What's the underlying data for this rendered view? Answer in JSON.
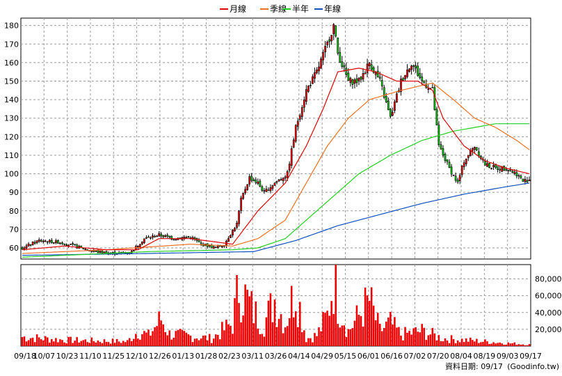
{
  "chart_data": {
    "type": "candlestick",
    "legend": [
      {
        "label": "月線",
        "color": "#e00000"
      },
      {
        "label": "季線",
        "color": "#f07020"
      },
      {
        "label": "半年",
        "color": "#20d020"
      },
      {
        "label": "年線",
        "color": "#1050c0"
      }
    ],
    "price_axis": {
      "ticks": [
        60,
        70,
        80,
        90,
        100,
        110,
        120,
        130,
        140,
        150,
        160,
        170,
        180
      ],
      "range": [
        54,
        184
      ]
    },
    "volume_axis": {
      "ticks": [
        "20,000",
        "40,000",
        "60,000",
        "80,000"
      ],
      "tick_values": [
        20000,
        40000,
        60000,
        80000
      ],
      "range": [
        0,
        97000
      ]
    },
    "x_ticks": [
      "09/18",
      "10/07",
      "10/23",
      "11/10",
      "11/25",
      "12/10",
      "12/26",
      "01/13",
      "01/28",
      "02/23",
      "03/11",
      "03/26",
      "04/14",
      "04/29",
      "05/15",
      "06/01",
      "06/16",
      "07/02",
      "07/20",
      "08/04",
      "08/19",
      "09/03",
      "09/17"
    ],
    "price_keypoints": [
      [
        0,
        60
      ],
      [
        8,
        64
      ],
      [
        18,
        63
      ],
      [
        28,
        60
      ],
      [
        35,
        58
      ],
      [
        45,
        57
      ],
      [
        52,
        58
      ],
      [
        58,
        65
      ],
      [
        65,
        67
      ],
      [
        72,
        65
      ],
      [
        80,
        66
      ],
      [
        85,
        62
      ],
      [
        92,
        60
      ],
      [
        96,
        62
      ],
      [
        102,
        73
      ],
      [
        104,
        86
      ],
      [
        108,
        98
      ],
      [
        112,
        95
      ],
      [
        115,
        90
      ],
      [
        120,
        95
      ],
      [
        126,
        100
      ],
      [
        130,
        125
      ],
      [
        135,
        145
      ],
      [
        140,
        155
      ],
      [
        145,
        170
      ],
      [
        148,
        180
      ],
      [
        150,
        165
      ],
      [
        155,
        150
      ],
      [
        160,
        150
      ],
      [
        165,
        160
      ],
      [
        170,
        150
      ],
      [
        175,
        130
      ],
      [
        180,
        150
      ],
      [
        185,
        160
      ],
      [
        190,
        150
      ],
      [
        195,
        145
      ],
      [
        198,
        115
      ],
      [
        203,
        103
      ],
      [
        207,
        95
      ],
      [
        210,
        107
      ],
      [
        215,
        115
      ],
      [
        220,
        105
      ],
      [
        225,
        103
      ],
      [
        230,
        103
      ],
      [
        235,
        100
      ],
      [
        238,
        96
      ],
      [
        241,
        97
      ]
    ],
    "ma_month": [
      [
        0,
        59
      ],
      [
        20,
        61
      ],
      [
        40,
        59
      ],
      [
        55,
        59
      ],
      [
        65,
        65
      ],
      [
        80,
        65
      ],
      [
        100,
        62
      ],
      [
        112,
        80
      ],
      [
        125,
        95
      ],
      [
        135,
        115
      ],
      [
        143,
        135
      ],
      [
        150,
        155
      ],
      [
        160,
        157
      ],
      [
        168,
        155
      ],
      [
        178,
        150
      ],
      [
        188,
        150
      ],
      [
        195,
        145
      ],
      [
        200,
        130
      ],
      [
        210,
        115
      ],
      [
        220,
        107
      ],
      [
        230,
        103
      ],
      [
        241,
        100
      ]
    ],
    "ma_quarter": [
      [
        0,
        57
      ],
      [
        40,
        59
      ],
      [
        80,
        62
      ],
      [
        100,
        61
      ],
      [
        112,
        65
      ],
      [
        125,
        75
      ],
      [
        135,
        95
      ],
      [
        145,
        115
      ],
      [
        155,
        130
      ],
      [
        165,
        140
      ],
      [
        180,
        145
      ],
      [
        195,
        149
      ],
      [
        205,
        140
      ],
      [
        215,
        130
      ],
      [
        225,
        125
      ],
      [
        235,
        118
      ],
      [
        241,
        113
      ]
    ],
    "ma_half": [
      [
        0,
        55
      ],
      [
        60,
        58
      ],
      [
        100,
        59
      ],
      [
        112,
        60
      ],
      [
        125,
        65
      ],
      [
        135,
        75
      ],
      [
        145,
        85
      ],
      [
        160,
        100
      ],
      [
        175,
        110
      ],
      [
        190,
        118
      ],
      [
        205,
        123
      ],
      [
        225,
        127
      ],
      [
        241,
        127
      ]
    ],
    "ma_year": [
      [
        0,
        56
      ],
      [
        60,
        57
      ],
      [
        110,
        58
      ],
      [
        130,
        64
      ],
      [
        150,
        72
      ],
      [
        170,
        78
      ],
      [
        190,
        84
      ],
      [
        210,
        89
      ],
      [
        230,
        93
      ],
      [
        241,
        95
      ]
    ],
    "volume_keypoints": [
      [
        0,
        12000
      ],
      [
        20,
        8000
      ],
      [
        50,
        6000
      ],
      [
        55,
        20000
      ],
      [
        60,
        14000
      ],
      [
        66,
        36000
      ],
      [
        70,
        16000
      ],
      [
        90,
        10000
      ],
      [
        100,
        30000
      ],
      [
        103,
        80000
      ],
      [
        110,
        45000
      ],
      [
        115,
        30000
      ],
      [
        120,
        62000
      ],
      [
        125,
        30000
      ],
      [
        130,
        78000
      ],
      [
        135,
        10000
      ],
      [
        140,
        14000
      ],
      [
        145,
        40000
      ],
      [
        148,
        88000
      ],
      [
        150,
        60000
      ],
      [
        155,
        20000
      ],
      [
        165,
        60000
      ],
      [
        170,
        20000
      ],
      [
        175,
        30000
      ],
      [
        180,
        15000
      ],
      [
        190,
        20000
      ],
      [
        200,
        10000
      ],
      [
        210,
        8000
      ],
      [
        230,
        4000
      ],
      [
        241,
        2000
      ]
    ]
  },
  "footer": {
    "date_label": "資料日期: 09/17",
    "source": "(Goodinfo.tw)"
  }
}
